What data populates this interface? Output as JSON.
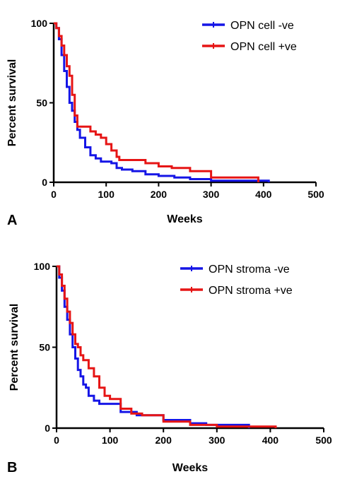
{
  "chart_data": [
    {
      "type": "line",
      "panel_label": "A",
      "xlabel": "Weeks",
      "ylabel": "Percent survival",
      "xlim": [
        0,
        500
      ],
      "ylim": [
        0,
        100
      ],
      "xticks": [
        0,
        100,
        200,
        300,
        400,
        500
      ],
      "yticks": [
        0,
        50,
        100
      ],
      "grid": false,
      "legend_position": "top-right",
      "series": [
        {
          "name": "OPN cell -ve",
          "color": "#1515e6",
          "x": [
            0,
            5,
            10,
            15,
            20,
            25,
            30,
            35,
            40,
            45,
            50,
            60,
            70,
            80,
            90,
            100,
            110,
            120,
            130,
            150,
            175,
            200,
            230,
            260,
            300,
            350,
            410
          ],
          "y": [
            100,
            97,
            90,
            80,
            70,
            60,
            50,
            45,
            38,
            33,
            28,
            22,
            17,
            15,
            13,
            13,
            12,
            9,
            8,
            7,
            5,
            4,
            3,
            2,
            1,
            1,
            0
          ]
        },
        {
          "name": "OPN cell +ve",
          "color": "#e61515",
          "x": [
            0,
            5,
            10,
            15,
            20,
            25,
            30,
            35,
            40,
            45,
            50,
            70,
            80,
            90,
            100,
            110,
            120,
            125,
            150,
            175,
            200,
            225,
            260,
            300,
            390
          ],
          "y": [
            100,
            97,
            92,
            86,
            80,
            73,
            67,
            55,
            42,
            35,
            35,
            32,
            30,
            28,
            24,
            20,
            16,
            14,
            14,
            12,
            10,
            9,
            7,
            3,
            0
          ]
        }
      ]
    },
    {
      "type": "line",
      "panel_label": "B",
      "xlabel": "Weeks",
      "ylabel": "Percent survival",
      "xlim": [
        0,
        500
      ],
      "ylim": [
        0,
        100
      ],
      "xticks": [
        0,
        100,
        200,
        300,
        400,
        500
      ],
      "yticks": [
        0,
        50,
        100
      ],
      "grid": false,
      "legend_position": "top-right",
      "series": [
        {
          "name": "OPN stroma -ve",
          "color": "#1515e6",
          "x": [
            0,
            5,
            10,
            15,
            20,
            25,
            30,
            35,
            40,
            45,
            50,
            55,
            60,
            70,
            80,
            90,
            100,
            120,
            150,
            200,
            250,
            280,
            360
          ],
          "y": [
            100,
            93,
            85,
            75,
            67,
            58,
            50,
            43,
            36,
            32,
            27,
            25,
            20,
            17,
            15,
            15,
            15,
            10,
            8,
            5,
            3,
            2,
            0
          ]
        },
        {
          "name": "OPN stroma +ve",
          "color": "#e61515",
          "x": [
            0,
            5,
            10,
            15,
            20,
            25,
            30,
            35,
            40,
            45,
            50,
            60,
            70,
            80,
            90,
            100,
            120,
            140,
            160,
            200,
            250,
            300,
            350,
            410
          ],
          "y": [
            100,
            95,
            88,
            80,
            72,
            65,
            58,
            52,
            50,
            45,
            42,
            37,
            32,
            25,
            20,
            18,
            12,
            9,
            8,
            4,
            2,
            1,
            1,
            0
          ]
        }
      ]
    }
  ]
}
